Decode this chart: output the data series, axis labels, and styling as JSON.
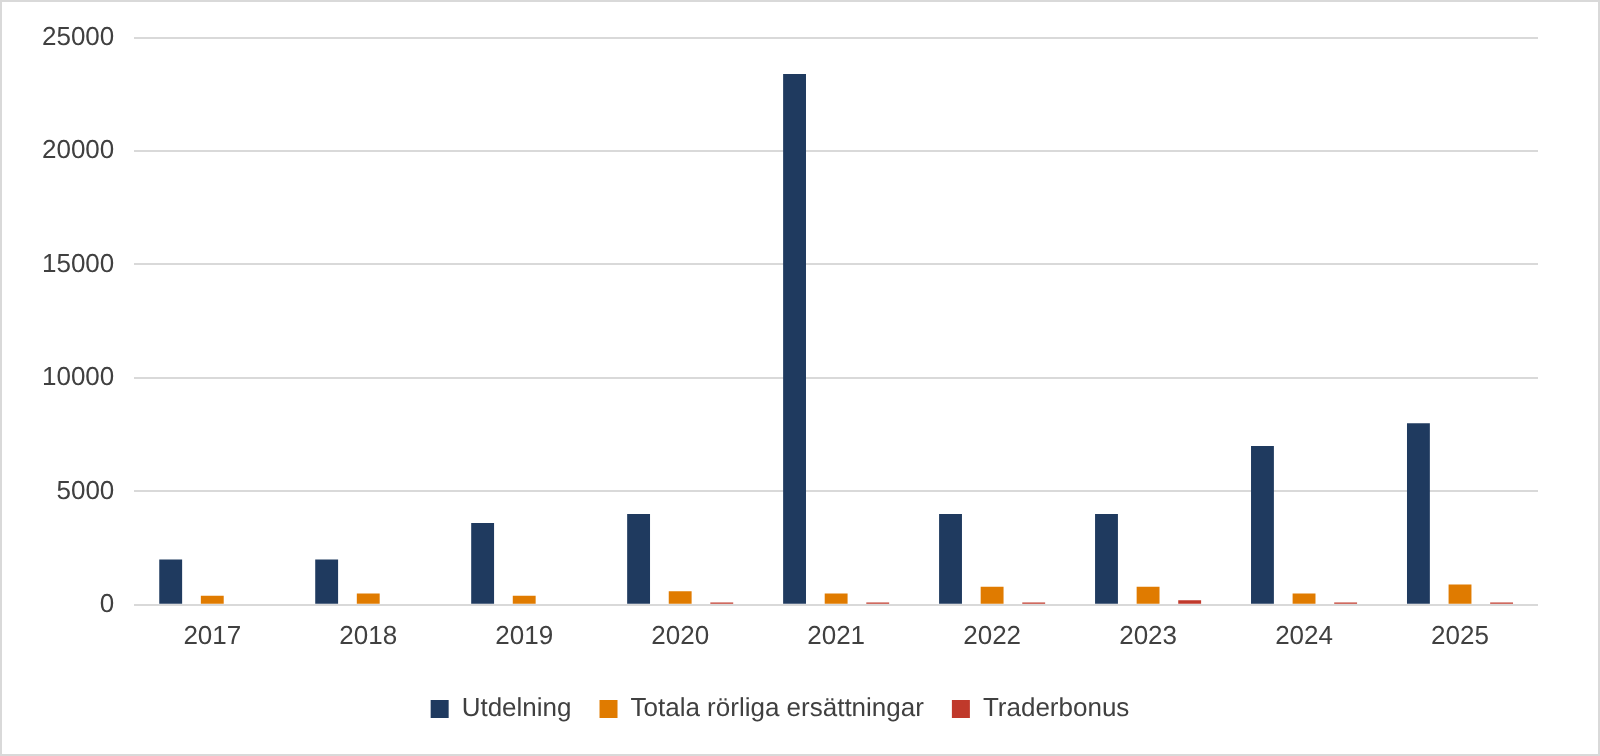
{
  "chart_data": {
    "type": "bar",
    "categories": [
      "2017",
      "2018",
      "2019",
      "2020",
      "2021",
      "2022",
      "2023",
      "2024",
      "2025"
    ],
    "series": [
      {
        "name": "Utdelning",
        "color": "#1f3a5f",
        "values": [
          2000,
          2000,
          3600,
          4000,
          23400,
          4000,
          4000,
          7000,
          8000
        ]
      },
      {
        "name": "Totala rörliga ersättningar",
        "color": "#e07b00",
        "values": [
          400,
          500,
          400,
          600,
          500,
          800,
          800,
          500,
          900
        ]
      },
      {
        "name": "Traderbonus",
        "color": "#c0392b",
        "values": [
          0,
          0,
          0,
          100,
          100,
          100,
          200,
          100,
          100
        ]
      }
    ],
    "ylim": [
      0,
      25000
    ],
    "yticks": [
      0,
      5000,
      10000,
      15000,
      20000,
      25000
    ],
    "grid": "y",
    "legend": "bottom"
  }
}
